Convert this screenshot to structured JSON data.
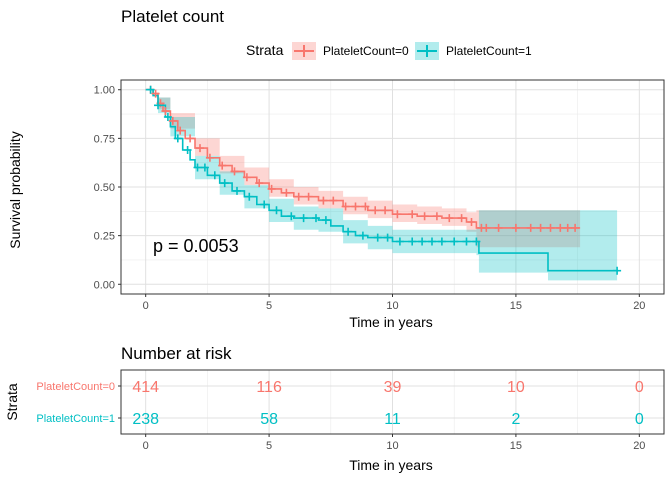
{
  "chart_data": [
    {
      "type": "line",
      "subtype": "kaplan-meier survival curve with confidence bands",
      "title": "Platelet count",
      "xlabel": "Time in years",
      "ylabel": "Survival probability",
      "xlim": [
        0,
        20
      ],
      "ylim": [
        0,
        1
      ],
      "x_ticks": [
        "0",
        "5",
        "10",
        "15",
        "20"
      ],
      "y_ticks": [
        "0.00",
        "0.25",
        "0.50",
        "0.75",
        "1.00"
      ],
      "grid": true,
      "legend": {
        "title": "Strata",
        "position": "top",
        "entries": [
          "PlateletCount=0",
          "PlateletCount=1"
        ]
      },
      "annotation": "p = 0.0053",
      "series": [
        {
          "name": "PlateletCount=0",
          "color": "#F8766D",
          "steps": [
            [
              0,
              1.0
            ],
            [
              0.3,
              0.98
            ],
            [
              0.5,
              0.93
            ],
            [
              0.7,
              0.89
            ],
            [
              1.0,
              0.84
            ],
            [
              1.3,
              0.79
            ],
            [
              1.6,
              0.75
            ],
            [
              2.0,
              0.7
            ],
            [
              2.5,
              0.65
            ],
            [
              3.0,
              0.61
            ],
            [
              3.5,
              0.58
            ],
            [
              4.0,
              0.55
            ],
            [
              4.5,
              0.52
            ],
            [
              5.0,
              0.49
            ],
            [
              5.5,
              0.47
            ],
            [
              6.0,
              0.45
            ],
            [
              7.0,
              0.43
            ],
            [
              8.0,
              0.4
            ],
            [
              9.0,
              0.38
            ],
            [
              10.0,
              0.36
            ],
            [
              11.0,
              0.35
            ],
            [
              12.0,
              0.34
            ],
            [
              13.0,
              0.32
            ],
            [
              13.4,
              0.29
            ],
            [
              17.6,
              0.29
            ]
          ],
          "lower": [
            [
              0,
              1.0
            ],
            [
              0.5,
              0.9
            ],
            [
              1.0,
              0.8
            ],
            [
              2.0,
              0.66
            ],
            [
              3.0,
              0.57
            ],
            [
              4.0,
              0.51
            ],
            [
              5.0,
              0.45
            ],
            [
              6.0,
              0.41
            ],
            [
              7.0,
              0.39
            ],
            [
              8.0,
              0.36
            ],
            [
              9.0,
              0.34
            ],
            [
              10.0,
              0.32
            ],
            [
              11.0,
              0.31
            ],
            [
              12.0,
              0.3
            ],
            [
              13.0,
              0.27
            ],
            [
              13.4,
              0.19
            ],
            [
              17.6,
              0.19
            ]
          ],
          "upper": [
            [
              0,
              1.0
            ],
            [
              0.5,
              0.96
            ],
            [
              1.0,
              0.88
            ],
            [
              2.0,
              0.75
            ],
            [
              3.0,
              0.66
            ],
            [
              4.0,
              0.6
            ],
            [
              5.0,
              0.54
            ],
            [
              6.0,
              0.5
            ],
            [
              7.0,
              0.48
            ],
            [
              8.0,
              0.45
            ],
            [
              9.0,
              0.43
            ],
            [
              10.0,
              0.41
            ],
            [
              11.0,
              0.4
            ],
            [
              12.0,
              0.39
            ],
            [
              13.0,
              0.37
            ],
            [
              13.4,
              0.38
            ],
            [
              17.6,
              0.38
            ]
          ],
          "censored": [
            0.2,
            0.4,
            0.6,
            0.8,
            1.1,
            1.4,
            1.8,
            2.2,
            2.6,
            3.1,
            3.6,
            4.1,
            4.6,
            5.1,
            5.7,
            6.2,
            6.6,
            7.2,
            7.6,
            8.1,
            8.5,
            8.9,
            9.3,
            9.7,
            10.2,
            10.8,
            11.3,
            11.8,
            12.3,
            12.8,
            13.2,
            13.6,
            13.8,
            14.3,
            15.0,
            15.6,
            16.0,
            16.4,
            16.8,
            17.1,
            17.4
          ]
        },
        {
          "name": "PlateletCount=1",
          "color": "#00BFC4",
          "steps": [
            [
              0,
              1.0
            ],
            [
              0.3,
              0.97
            ],
            [
              0.5,
              0.92
            ],
            [
              0.8,
              0.86
            ],
            [
              1.0,
              0.81
            ],
            [
              1.2,
              0.75
            ],
            [
              1.5,
              0.69
            ],
            [
              1.8,
              0.64
            ],
            [
              2.0,
              0.6
            ],
            [
              2.5,
              0.56
            ],
            [
              3.0,
              0.52
            ],
            [
              3.5,
              0.48
            ],
            [
              4.0,
              0.45
            ],
            [
              4.5,
              0.41
            ],
            [
              5.0,
              0.38
            ],
            [
              5.5,
              0.35
            ],
            [
              6.0,
              0.34
            ],
            [
              7.0,
              0.33
            ],
            [
              7.5,
              0.3
            ],
            [
              8.0,
              0.27
            ],
            [
              8.5,
              0.25
            ],
            [
              9.0,
              0.24
            ],
            [
              10.0,
              0.22
            ],
            [
              11.0,
              0.22
            ],
            [
              12.0,
              0.22
            ],
            [
              13.4,
              0.22
            ],
            [
              13.5,
              0.16
            ],
            [
              16.2,
              0.16
            ],
            [
              16.3,
              0.07
            ],
            [
              19.1,
              0.07
            ]
          ],
          "lower": [
            [
              0,
              1.0
            ],
            [
              0.5,
              0.88
            ],
            [
              1.0,
              0.76
            ],
            [
              2.0,
              0.54
            ],
            [
              3.0,
              0.46
            ],
            [
              4.0,
              0.39
            ],
            [
              5.0,
              0.32
            ],
            [
              6.0,
              0.28
            ],
            [
              7.0,
              0.27
            ],
            [
              8.0,
              0.21
            ],
            [
              9.0,
              0.18
            ],
            [
              10.0,
              0.16
            ],
            [
              12.0,
              0.16
            ],
            [
              13.4,
              0.15
            ],
            [
              13.5,
              0.06
            ],
            [
              16.2,
              0.06
            ],
            [
              16.3,
              0.02
            ],
            [
              19.1,
              0.02
            ]
          ],
          "upper": [
            [
              0,
              1.0
            ],
            [
              0.5,
              0.96
            ],
            [
              1.0,
              0.86
            ],
            [
              2.0,
              0.66
            ],
            [
              3.0,
              0.58
            ],
            [
              4.0,
              0.51
            ],
            [
              5.0,
              0.44
            ],
            [
              6.0,
              0.4
            ],
            [
              7.0,
              0.39
            ],
            [
              8.0,
              0.33
            ],
            [
              9.0,
              0.3
            ],
            [
              10.0,
              0.28
            ],
            [
              12.0,
              0.28
            ],
            [
              13.4,
              0.29
            ],
            [
              13.5,
              0.38
            ],
            [
              19.1,
              0.38
            ]
          ],
          "censored": [
            0.2,
            0.5,
            0.9,
            1.3,
            1.7,
            2.1,
            2.4,
            2.8,
            3.2,
            3.7,
            4.2,
            4.8,
            5.3,
            5.9,
            6.4,
            6.9,
            7.3,
            8.2,
            8.8,
            9.4,
            9.8,
            10.3,
            10.8,
            11.2,
            11.6,
            12.0,
            12.5,
            13.0,
            13.4,
            19.1
          ]
        }
      ]
    },
    {
      "type": "table",
      "title": "Number at risk",
      "xlabel": "Time in years",
      "ylabel": "Strata",
      "x_ticks": [
        "0",
        "5",
        "10",
        "15",
        "20"
      ],
      "rows": [
        {
          "label": "PlateletCount=0",
          "color": "#F8766D",
          "values": [
            "414",
            "116",
            "39",
            "10",
            "0"
          ]
        },
        {
          "label": "PlateletCount=1",
          "color": "#00BFC4",
          "values": [
            "238",
            "58",
            "11",
            "2",
            "0"
          ]
        }
      ]
    }
  ]
}
